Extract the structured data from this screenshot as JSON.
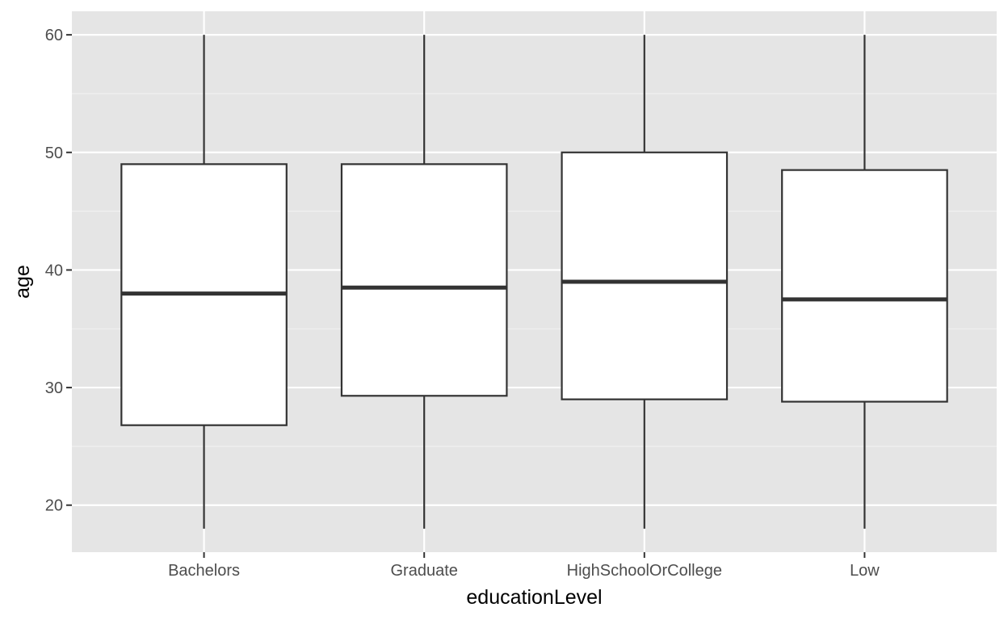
{
  "chart_data": {
    "type": "boxplot",
    "title": "",
    "xlabel": "educationLevel",
    "ylabel": "age",
    "ylim": [
      16,
      62
    ],
    "y_ticks": [
      20,
      30,
      40,
      50,
      60
    ],
    "grid": true,
    "categories": [
      "Bachelors",
      "Graduate",
      "HighSchoolOrCollege",
      "Low"
    ],
    "boxes": [
      {
        "category": "Bachelors",
        "min": 18,
        "q1": 26.8,
        "median": 38,
        "q3": 49,
        "max": 60
      },
      {
        "category": "Graduate",
        "min": 18,
        "q1": 29.3,
        "median": 38.5,
        "q3": 49,
        "max": 60
      },
      {
        "category": "HighSchoolOrCollege",
        "min": 18,
        "q1": 29,
        "median": 39,
        "q3": 50,
        "max": 60
      },
      {
        "category": "Low",
        "min": 18,
        "q1": 28.8,
        "median": 37.5,
        "q3": 48.5,
        "max": 60
      }
    ],
    "colors": {
      "panel": "#e5e5e5",
      "box_fill": "#ffffff",
      "line": "#333333",
      "grid": "#ffffff",
      "tick_label": "#4d4d4d"
    }
  }
}
